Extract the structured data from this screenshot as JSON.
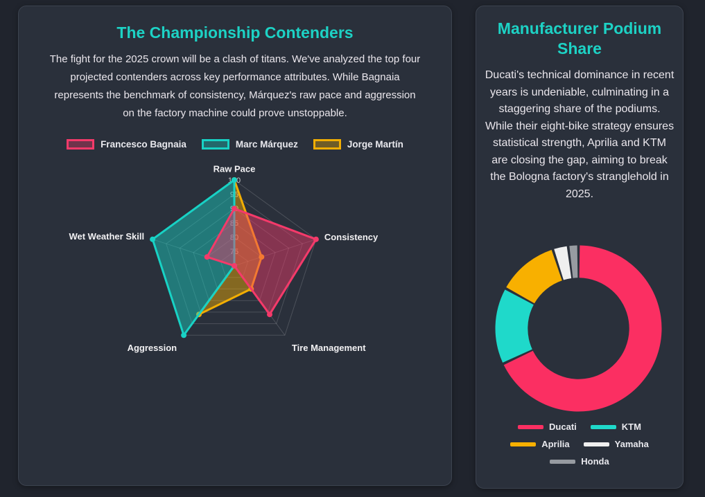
{
  "page": {
    "background_color": "#20242d",
    "card_background_color": "#2a303b",
    "accent_color": "#1dd2c5"
  },
  "left_card": {
    "title": "The Championship Contenders",
    "description": "The fight for the 2025 crown will be a clash of titans. We've analyzed the top four projected contenders across key performance attributes. While Bagnaia represents the benchmark of consistency, Márquez's raw pace and aggression on the factory machine could prove unstoppable."
  },
  "right_card": {
    "title": "Manufacturer Podium Share",
    "description": "Ducati's technical dominance in recent years is undeniable, culminating in a staggering share of the podiums. While their eight-bike strategy ensures statistical strength, Aprilia and KTM are closing the gap, aiming to break the Bologna factory's stranglehold in 2025."
  },
  "chart_data": [
    {
      "type": "radar",
      "title": "The Championship Contenders",
      "categories": [
        "Raw Pace",
        "Consistency",
        "Tire Management",
        "Aggression",
        "Wet Weather Skill"
      ],
      "series": [
        {
          "name": "Francesco Bagnaia",
          "color": "#f43a6a",
          "values": [
            90,
            100,
            91,
            70,
            80
          ]
        },
        {
          "name": "Marc Márquez",
          "color": "#18d2c5",
          "values": [
            100,
            70,
            70,
            100,
            100
          ]
        },
        {
          "name": "Jorge Martín",
          "color": "#f2ae03",
          "values": [
            100,
            80,
            80,
            91,
            70
          ]
        }
      ],
      "scale": {
        "min": 70,
        "max": 100,
        "step": 5,
        "tick_labels": [
          "75",
          "80",
          "85",
          "90",
          "95",
          "100"
        ]
      },
      "grid": true,
      "legend_position": "top",
      "fill_opacity": 0.45
    },
    {
      "type": "pie",
      "title": "Manufacturer Podium Share",
      "subtype": "doughnut",
      "categories": [
        "Ducati",
        "KTM",
        "Aprilia",
        "Yamaha",
        "Honda"
      ],
      "values": [
        68,
        15,
        12,
        3,
        2
      ],
      "unit": "percent",
      "colors": [
        "#fb2f62",
        "#1fd9ca",
        "#f8b000",
        "#efefef",
        "#979ba1"
      ],
      "cutout_ratio": 0.61,
      "legend_position": "bottom"
    }
  ]
}
